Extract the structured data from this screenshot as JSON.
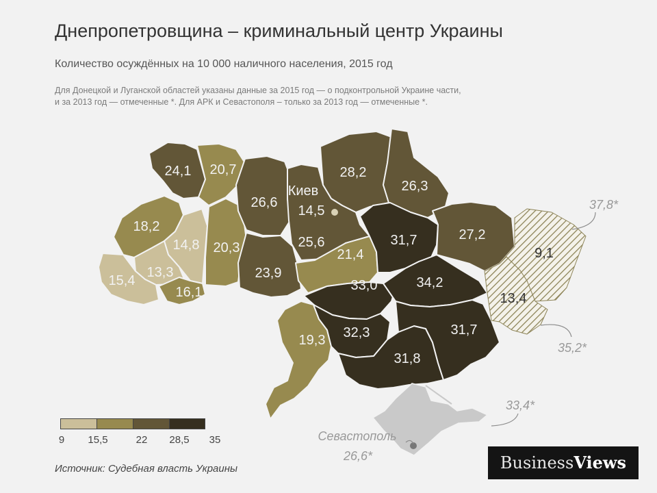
{
  "title": "Днепропетровщина – криминальный центр Украины",
  "subtitle": "Количество осуждённых на 10 000 наличного населения, 2015 год",
  "note_line1": "Для Донецкой и Луганской областей указаны данные за 2015 год — о подконтрольной Украине части,",
  "note_line2": "и за 2013 год — отмеченные *. Для АРК и Севастополя – только за 2013 год — отмеченные *.",
  "source": "Источник: Судебная власть Украины",
  "brand": {
    "part1": "Business",
    "part2": "Views"
  },
  "legend": {
    "ticks": [
      "9",
      "15,5",
      "22",
      "28,5",
      "35"
    ],
    "colors": [
      "#cbbf9a",
      "#978a4f",
      "#625637",
      "#362f1f"
    ]
  },
  "map": {
    "kiev_city": {
      "name": "Киев",
      "value": "14,5"
    },
    "regions": [
      {
        "value": "24,1",
        "color": "#625637"
      },
      {
        "value": "20,7",
        "color": "#978a4f"
      },
      {
        "value": "18,2",
        "color": "#978a4f"
      },
      {
        "value": "14,8",
        "color": "#cbbf9a"
      },
      {
        "value": "13,3",
        "color": "#cbbf9a"
      },
      {
        "value": "15,4",
        "color": "#cbbf9a"
      },
      {
        "value": "16,1",
        "color": "#978a4f"
      },
      {
        "value": "20,3",
        "color": "#978a4f"
      },
      {
        "value": "26,6",
        "color": "#625637"
      },
      {
        "value": "23,9",
        "color": "#625637"
      },
      {
        "value": "25,6",
        "color": "#625637"
      },
      {
        "value": "28,2",
        "color": "#625637"
      },
      {
        "value": "26,3",
        "color": "#625637"
      },
      {
        "value": "21,4",
        "color": "#978a4f"
      },
      {
        "value": "31,7",
        "color": "#362f1f"
      },
      {
        "value": "27,2",
        "color": "#625637"
      },
      {
        "value": "33,0",
        "color": "#362f1f"
      },
      {
        "value": "34,2",
        "color": "#362f1f"
      },
      {
        "value": "19,3",
        "color": "#978a4f"
      },
      {
        "value": "32,3",
        "color": "#362f1f"
      },
      {
        "value": "31,8",
        "color": "#362f1f"
      },
      {
        "value": "31,7",
        "color": "#362f1f"
      },
      {
        "value": "9,1",
        "color": "hatched"
      },
      {
        "value": "13,4",
        "color": "hatched"
      }
    ],
    "outside": [
      {
        "value": "37,8*"
      },
      {
        "value": "35,2*"
      },
      {
        "value": "33,4*"
      },
      {
        "name": "Севастополь",
        "value": "26,6*"
      }
    ]
  }
}
